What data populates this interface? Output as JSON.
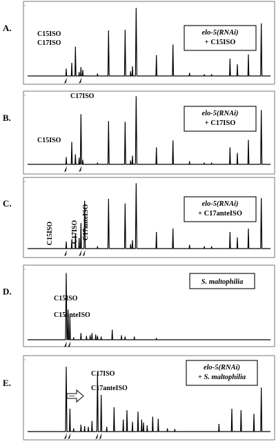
{
  "chart_data": [
    {
      "type": "line",
      "panel_label": "A.",
      "legend": [
        "elo-5(RNAi)",
        "+ C15ISO"
      ],
      "legend_italic": [
        true,
        false
      ],
      "peak_labels": [
        "C15ISO",
        "C17ISO"
      ],
      "arrow_positions": [
        21,
        29
      ],
      "peaks": [
        [
          21,
          0.1
        ],
        [
          24,
          0.18
        ],
        [
          26,
          0.41
        ],
        [
          28,
          0.05
        ],
        [
          29,
          0.12
        ],
        [
          30,
          0.08
        ],
        [
          38,
          0.03
        ],
        [
          44,
          0.64
        ],
        [
          53,
          0.65
        ],
        [
          56,
          0.06
        ],
        [
          57,
          0.13
        ],
        [
          59,
          0.96
        ],
        [
          70,
          0.29
        ],
        [
          79,
          0.44
        ],
        [
          88,
          0.04
        ],
        [
          96,
          0.02
        ],
        [
          100,
          0.02
        ],
        [
          110,
          0.24
        ],
        [
          114,
          0.16
        ],
        [
          120,
          0.3
        ],
        [
          127,
          0.74
        ]
      ]
    },
    {
      "type": "line",
      "panel_label": "B.",
      "legend": [
        "elo-5(RNAi)",
        "+ C17ISO"
      ],
      "legend_italic": [
        true,
        false
      ],
      "peak_labels": [
        "C15ISO",
        "C17ISO"
      ],
      "arrow_positions": [
        21,
        29
      ],
      "peaks": [
        [
          21,
          0.1
        ],
        [
          24,
          0.32
        ],
        [
          26,
          0.14
        ],
        [
          28,
          0.09
        ],
        [
          29,
          0.72
        ],
        [
          30,
          0.06
        ],
        [
          38,
          0.02
        ],
        [
          44,
          0.62
        ],
        [
          53,
          0.61
        ],
        [
          56,
          0.05
        ],
        [
          57,
          0.12
        ],
        [
          59,
          0.98
        ],
        [
          70,
          0.24
        ],
        [
          79,
          0.34
        ],
        [
          88,
          0.04
        ],
        [
          96,
          0.02
        ],
        [
          100,
          0.02
        ],
        [
          110,
          0.24
        ],
        [
          114,
          0.16
        ],
        [
          120,
          0.35
        ],
        [
          127,
          0.78
        ]
      ]
    },
    {
      "type": "line",
      "panel_label": "C.",
      "legend": [
        "elo-5(RNAi)",
        "+ C17anteISO"
      ],
      "legend_italic": [
        true,
        false
      ],
      "peak_labels": [
        "C15ISO",
        "C17ISO",
        "C17anteISO"
      ],
      "arrow_positions": [
        21,
        29,
        31
      ],
      "peaks": [
        [
          21,
          0.1
        ],
        [
          24,
          0.13
        ],
        [
          26,
          0.22
        ],
        [
          28,
          0.15
        ],
        [
          29,
          0.37
        ],
        [
          31,
          0.7
        ],
        [
          38,
          0.03
        ],
        [
          44,
          0.73
        ],
        [
          53,
          0.66
        ],
        [
          56,
          0.06
        ],
        [
          57,
          0.12
        ],
        [
          59,
          0.96
        ],
        [
          70,
          0.24
        ],
        [
          79,
          0.29
        ],
        [
          88,
          0.05
        ],
        [
          96,
          0.03
        ],
        [
          100,
          0.03
        ],
        [
          110,
          0.24
        ],
        [
          114,
          0.16
        ],
        [
          120,
          0.29
        ],
        [
          127,
          0.74
        ]
      ]
    },
    {
      "type": "line",
      "panel_label": "D.",
      "legend": [
        "S. maltophilia"
      ],
      "legend_italic": [
        true
      ],
      "peak_labels": [
        "C15ISO",
        "C15anteISO"
      ],
      "arrow_positions": [
        21,
        23
      ],
      "peaks": [
        [
          21,
          0.96
        ],
        [
          22,
          0.43
        ],
        [
          23,
          0.33
        ],
        [
          25,
          0.03
        ],
        [
          29,
          0.09
        ],
        [
          32,
          0.05
        ],
        [
          34,
          0.06
        ],
        [
          35,
          0.09
        ],
        [
          37,
          0.07
        ],
        [
          38,
          0.05
        ],
        [
          40,
          0.04
        ],
        [
          46,
          0.14
        ],
        [
          51,
          0.06
        ],
        [
          53,
          0.04
        ],
        [
          58,
          0.04
        ],
        [
          70,
          0.02
        ]
      ]
    },
    {
      "type": "line",
      "panel_label": "E.",
      "legend": [
        "elo-5(RNAi)",
        "+ S. maltophilia"
      ],
      "legend_italic": [
        true,
        true
      ],
      "peak_labels": [
        "C17ISO",
        "C17anteISO"
      ],
      "arrow_positions": [
        21,
        23,
        38,
        40
      ],
      "peaks": [
        [
          21,
          0.89
        ],
        [
          23,
          0.31
        ],
        [
          25,
          0.04
        ],
        [
          29,
          0.09
        ],
        [
          31,
          0.07
        ],
        [
          33,
          0.06
        ],
        [
          35,
          0.14
        ],
        [
          38,
          0.81
        ],
        [
          40,
          0.5
        ],
        [
          43,
          0.06
        ],
        [
          47,
          0.33
        ],
        [
          52,
          0.16
        ],
        [
          54,
          0.29
        ],
        [
          57,
          0.13
        ],
        [
          60,
          0.27
        ],
        [
          62,
          0.16
        ],
        [
          63,
          0.12
        ],
        [
          65,
          0.08
        ],
        [
          68,
          0.2
        ],
        [
          71,
          0.17
        ],
        [
          76,
          0.04
        ],
        [
          80,
          0.03
        ],
        [
          104,
          0.1
        ],
        [
          111,
          0.31
        ],
        [
          116,
          0.29
        ],
        [
          123,
          0.24
        ],
        [
          127,
          0.6
        ]
      ]
    }
  ]
}
